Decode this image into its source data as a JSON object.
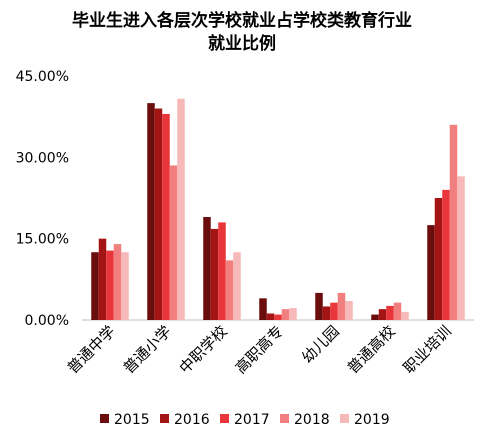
{
  "chart_data": {
    "type": "bar",
    "title_lines": [
      "毕业生进入各层次学校就业占学校类教育行业",
      "就业比例"
    ],
    "categories": [
      "普通中学",
      "普通小学",
      "中职学校",
      "高职高专",
      "幼儿园",
      "普通高校",
      "职业培训"
    ],
    "ylim": [
      0,
      45
    ],
    "yticks": [
      0,
      15,
      30,
      45
    ],
    "ytick_labels": [
      "0.00%",
      "15.00%",
      "30.00%",
      "45.00%"
    ],
    "xlabel": "",
    "ylabel": "",
    "grid": false,
    "legend_position": "bottom",
    "series": [
      {
        "name": "2015",
        "color": "#6b0d0d",
        "values": [
          12.5,
          40.0,
          19.0,
          4.0,
          5.0,
          1.0,
          17.5
        ]
      },
      {
        "name": "2016",
        "color": "#a31515",
        "values": [
          15.0,
          39.0,
          16.8,
          1.2,
          2.5,
          2.0,
          22.5
        ]
      },
      {
        "name": "2017",
        "color": "#e8363a",
        "values": [
          12.8,
          38.0,
          18.0,
          1.0,
          3.2,
          2.6,
          24.0
        ]
      },
      {
        "name": "2018",
        "color": "#f27f7f",
        "values": [
          14.0,
          28.5,
          11.0,
          2.0,
          5.0,
          3.2,
          36.0
        ]
      },
      {
        "name": "2019",
        "color": "#f7b8b8",
        "values": [
          12.5,
          40.8,
          12.5,
          2.2,
          3.5,
          1.5,
          26.5
        ]
      }
    ]
  }
}
